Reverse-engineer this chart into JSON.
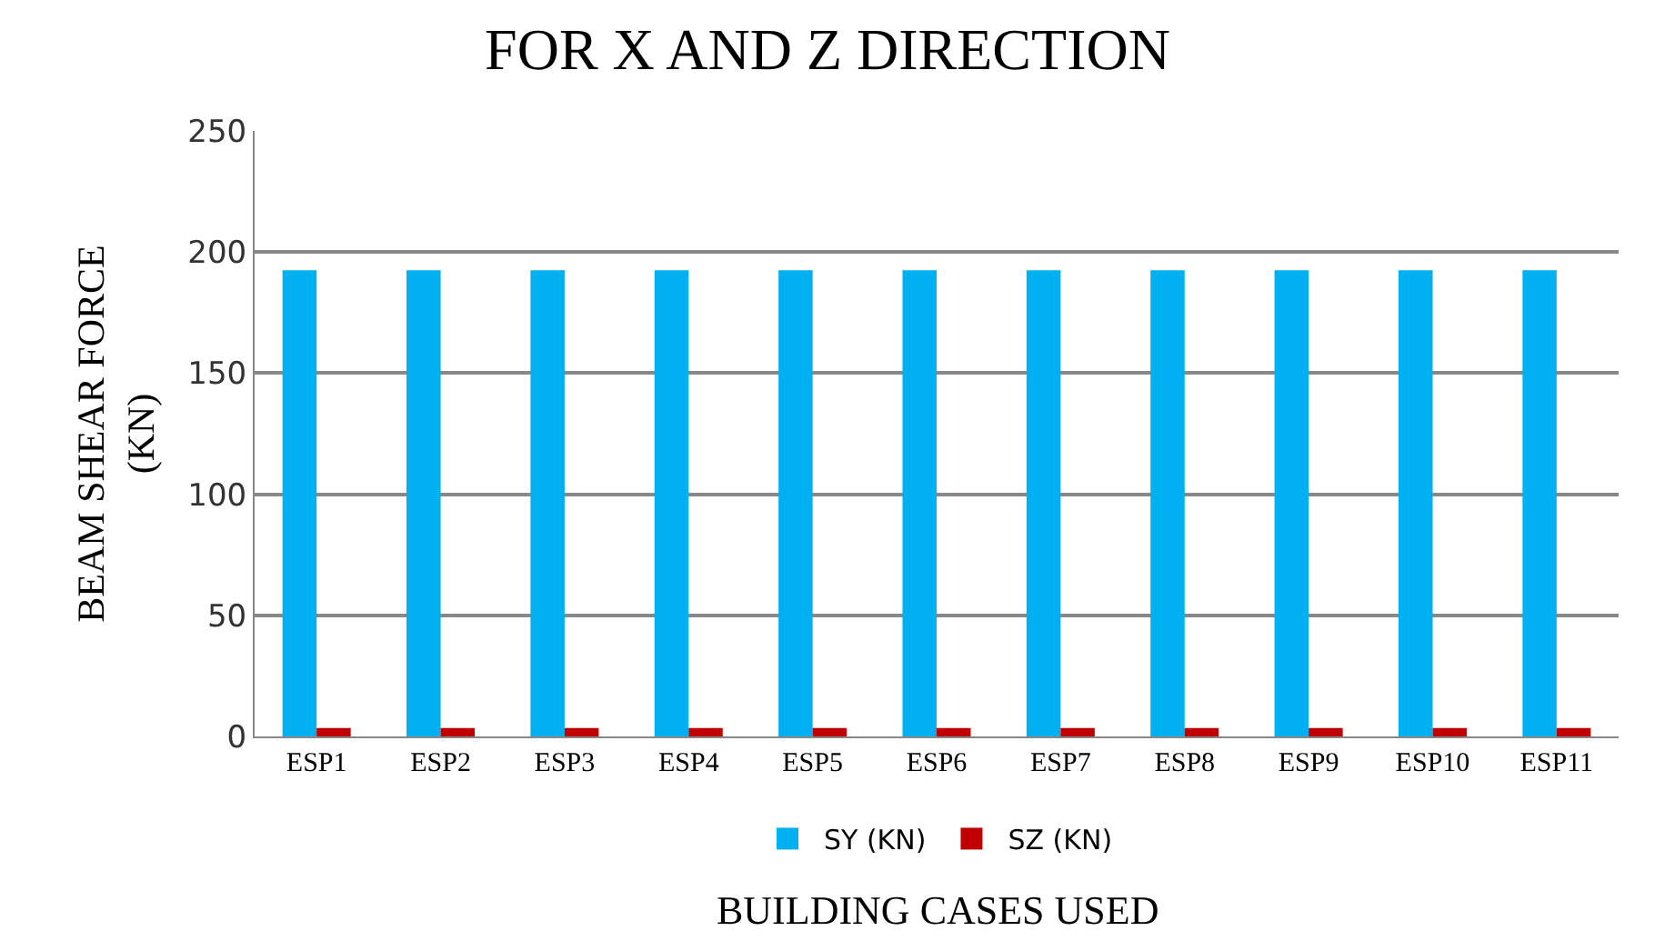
{
  "chart_data": {
    "type": "bar",
    "title": "FOR X AND Z DIRECTION",
    "xlabel": "BUILDING CASES USED",
    "ylabel": "BEAM SHEAR FORCE\n(KN)",
    "categories": [
      "ESP1",
      "ESP2",
      "ESP3",
      "ESP4",
      "ESP5",
      "ESP6",
      "ESP7",
      "ESP8",
      "ESP9",
      "ESP10",
      "ESP11"
    ],
    "series": [
      {
        "name": "SY (KN)",
        "color": "#00b0f0",
        "values": [
          192.5,
          192.5,
          192.5,
          192.5,
          192.5,
          192.5,
          192.5,
          192.5,
          192.5,
          192.5,
          192.5
        ]
      },
      {
        "name": "SZ (KN)",
        "color": "#c00000",
        "values": [
          3.5,
          3.5,
          3.5,
          3.5,
          3.5,
          3.5,
          3.5,
          3.5,
          3.5,
          3.5,
          3.5
        ]
      }
    ],
    "ylim": [
      0,
      250
    ],
    "yticks": [
      0,
      50,
      100,
      150,
      200,
      250
    ],
    "grid": "y",
    "legend": "bottom"
  }
}
